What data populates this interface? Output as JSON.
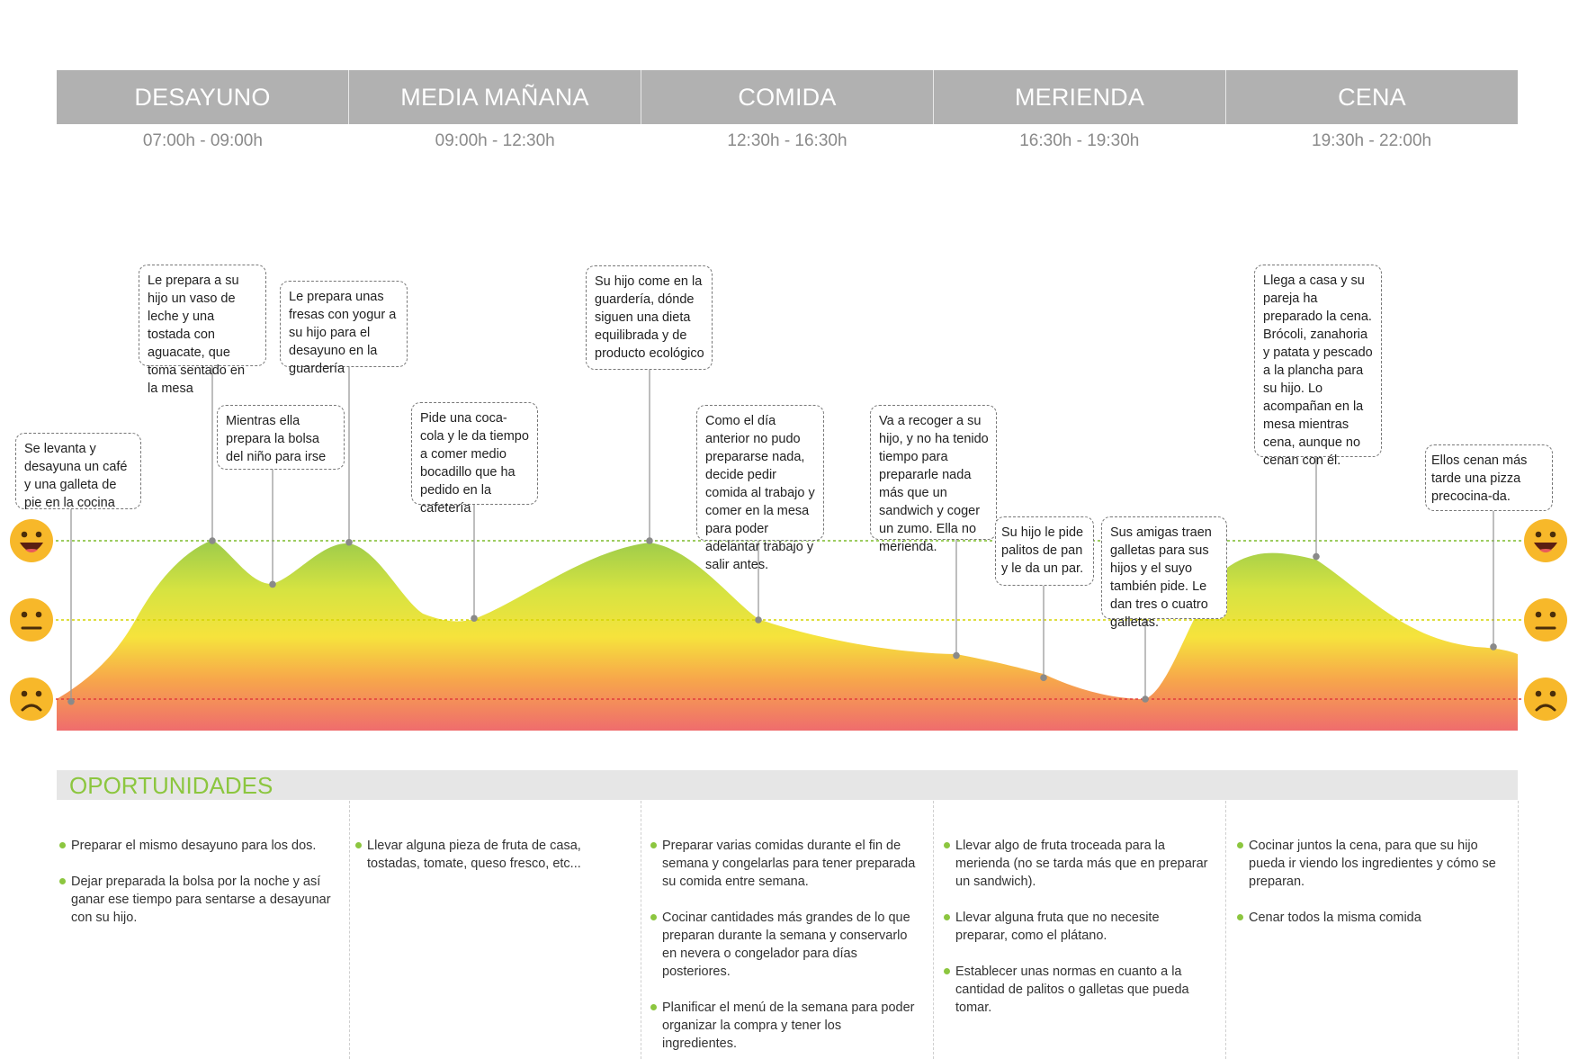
{
  "phases": [
    {
      "name": "DESAYUNO",
      "time": "07:00h - 09:00h"
    },
    {
      "name": "MEDIA MAÑANA",
      "time": "09:00h - 12:30h"
    },
    {
      "name": "COMIDA",
      "time": "12:30h - 16:30h"
    },
    {
      "name": "MERIENDA",
      "time": "16:30h - 19:30h"
    },
    {
      "name": "CENA",
      "time": "19:30h - 22:00h"
    }
  ],
  "emotion_levels": [
    {
      "name": "happy",
      "icon": "happy-face-icon",
      "color": "#8cc63f"
    },
    {
      "name": "neutral",
      "icon": "neutral-face-icon",
      "color": "#d9d900"
    },
    {
      "name": "sad",
      "icon": "sad-face-icon",
      "color": "#e84545"
    }
  ],
  "touchpoints": [
    {
      "text": "Se levanta y desayuna un café y una galleta de pie en la cocina",
      "emotion": -1.03
    },
    {
      "text": "Le prepara a su hijo un vaso de leche y una tostada con aguacate, que toma sentado en la mesa",
      "emotion": 1.0
    },
    {
      "text": "Mientras ella prepara la bolsa del niño para irse",
      "emotion": 0.45
    },
    {
      "text": "Le prepara unas fresas con yogur a su hijo para el desayuno en la guardería",
      "emotion": 0.98
    },
    {
      "text": "Pide una coca-cola y le da tiempo a comer medio bocadillo que ha pedido en la cafetería",
      "emotion": 0.02
    },
    {
      "text": "Su hijo come en la guardería, dónde siguen una dieta equilibrada y de producto ecológico",
      "emotion": 1.0
    },
    {
      "text": "Como el día anterior no pudo prepararse nada, decide pedir comida al trabajo y comer en la mesa para poder adelantar trabajo y salir antes.",
      "emotion": 0.0
    },
    {
      "text": "Va a recoger a su hijo, y no ha tenido tiempo para prepararle nada más que un sandwich y coger un zumo. Ella no merienda.",
      "emotion": -0.45
    },
    {
      "text": "Su hijo le pide palitos de pan y le da un par.",
      "emotion": -0.73
    },
    {
      "text": "Sus amigas traen galletas para sus hijos y el suyo también pide. Le dan tres o cuatro galletas.",
      "emotion": -1.0
    },
    {
      "text": "Llega a casa y su pareja ha preparado la cena. Brócoli, zanahoria y patata y pescado a la plancha para su hijo. Lo acompañan en la mesa mientras cena, aunque no cenan con él.",
      "emotion": 0.8
    },
    {
      "text": "Ellos cenan más tarde una pizza precocina-da.",
      "emotion": -0.34
    }
  ],
  "opportunities": {
    "title": "OPORTUNIDADES",
    "columns": [
      [
        "Preparar el mismo desayuno para los dos.",
        "Dejar preparada la bolsa por la noche y así ganar ese tiempo para sentarse a desayunar con su hijo."
      ],
      [
        "Llevar alguna pieza de fruta de casa, tostadas, tomate, queso fresco, etc..."
      ],
      [
        "Preparar varias comidas durante el fin de semana y congelarlas para tener preparada su comida entre semana.",
        "Cocinar cantidades más grandes de lo que preparan durante la semana y conservarlo en nevera o congelador para días posteriores.",
        "Planificar el menú de la semana para poder organizar la compra y tener los ingredientes."
      ],
      [
        "Llevar algo de fruta troceada para la merienda (no se tarda más que en preparar un sandwich).",
        "Llevar alguna fruta que no necesite preparar, como el plátano.",
        "Establecer unas normas en cuanto a la cantidad de palitos o galletas que pueda tomar."
      ],
      [
        "Cocinar juntos la cena, para que su hijo pueda ir viendo los ingredientes y cómo se preparan.",
        "Cenar todos la misma comida"
      ]
    ]
  }
}
